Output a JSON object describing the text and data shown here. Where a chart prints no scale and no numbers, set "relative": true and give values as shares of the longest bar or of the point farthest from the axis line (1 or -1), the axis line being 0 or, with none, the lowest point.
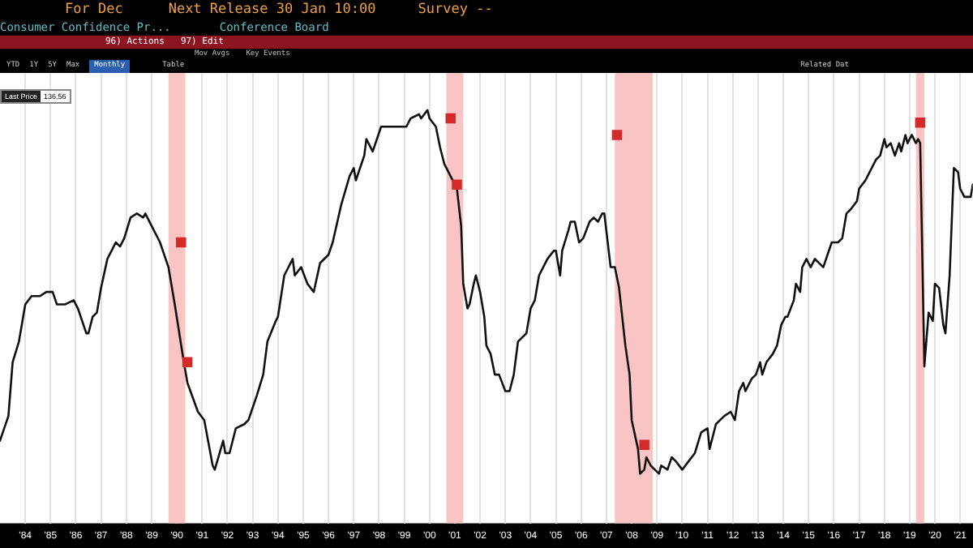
{
  "chart_data": {
    "type": "line",
    "title": "Consumer Confidence Pr...",
    "relative": true,
    "grid": "x",
    "legend": false,
    "marker": "none",
    "line_style": "solid",
    "annotations": [
      "For Dec",
      "Next Release 30 Jan 10:00",
      "Survey --",
      "Conference Board",
      "96) Actions",
      "97) Edit",
      "Mov Avgs",
      "Key Events",
      "YTD",
      "1Y",
      "5Y",
      "Max",
      "Monthly",
      "Table",
      "Related Dat",
      "Last Price",
      "136.56"
    ],
    "xlim": [
      "1983-07",
      "2022-01"
    ],
    "xticks": [
      {
        "value": "1984-07",
        "label": "'84"
      },
      {
        "value": "1985-07",
        "label": "'85"
      },
      {
        "value": "1986-07",
        "label": "'86"
      },
      {
        "value": "1987-07",
        "label": "'87"
      },
      {
        "value": "1988-07",
        "label": "'88"
      },
      {
        "value": "1989-07",
        "label": "'89"
      },
      {
        "value": "1990-07",
        "label": "'90"
      },
      {
        "value": "1991-07",
        "label": "'91"
      },
      {
        "value": "1992-07",
        "label": "'92"
      },
      {
        "value": "1993-07",
        "label": "'93"
      },
      {
        "value": "1994-07",
        "label": "'94"
      },
      {
        "value": "1995-07",
        "label": "'95"
      },
      {
        "value": "1996-07",
        "label": "'96"
      },
      {
        "value": "1997-07",
        "label": "'97"
      },
      {
        "value": "1998-07",
        "label": "'98"
      },
      {
        "value": "1999-07",
        "label": "'99"
      },
      {
        "value": "2000-07",
        "label": "'00"
      },
      {
        "value": "2001-07",
        "label": "'01"
      },
      {
        "value": "2002-07",
        "label": "'02"
      },
      {
        "value": "2003-07",
        "label": "'03"
      },
      {
        "value": "2004-07",
        "label": "'04"
      },
      {
        "value": "2005-07",
        "label": "'05"
      },
      {
        "value": "2006-07",
        "label": "'06"
      },
      {
        "value": "2007-07",
        "label": "'07"
      },
      {
        "value": "2008-07",
        "label": "'08"
      },
      {
        "value": "2009-07",
        "label": "'09"
      },
      {
        "value": "2010-07",
        "label": "'10"
      },
      {
        "value": "2011-07",
        "label": "'11"
      },
      {
        "value": "2012-07",
        "label": "'12"
      },
      {
        "value": "2013-07",
        "label": "'13"
      },
      {
        "value": "2014-07",
        "label": "'14"
      },
      {
        "value": "2015-07",
        "label": "'15"
      },
      {
        "value": "2016-07",
        "label": "'16"
      },
      {
        "value": "2017-07",
        "label": "'17"
      },
      {
        "value": "2018-07",
        "label": "'18"
      },
      {
        "value": "2019-07",
        "label": "'19"
      },
      {
        "value": "2020-07",
        "label": "'20"
      },
      {
        "value": "2021-07",
        "label": "'21"
      }
    ],
    "bands": [
      {
        "axis": "x",
        "from": "1990-03",
        "to": "1990-11",
        "color": "#f8c4c4"
      },
      {
        "axis": "x",
        "from": "2001-03",
        "to": "2001-11",
        "color": "#f8c4c4"
      },
      {
        "axis": "x",
        "from": "2007-11",
        "to": "2009-05",
        "color": "#f8c4c4"
      },
      {
        "axis": "x",
        "from": "2019-10",
        "to": "2020-02",
        "color": "#f8c4c4"
      }
    ],
    "series": [
      {
        "type": "scatter",
        "color": "#d42a2a",
        "marker": "square",
        "x": [
          "1990-09",
          "1990-12",
          "2001-05",
          "2001-08",
          "2007-12",
          "2009-01",
          "2019-12"
        ],
        "values": [
          0.68,
          0.39,
          0.98,
          0.82,
          0.94,
          0.19,
          0.97
        ]
      },
      {
        "color": "#111111",
        "x": [
          "1983-07",
          "1983-11",
          "1984-01",
          "1984-04",
          "1984-07",
          "1984-10",
          "1985-02",
          "1985-05",
          "1985-08",
          "1985-10",
          "1986-02",
          "1986-06",
          "1986-08",
          "1986-12",
          "1987-01",
          "1987-03",
          "1987-05",
          "1987-07",
          "1987-10",
          "1988-01",
          "1988-02",
          "1988-04",
          "1988-06",
          "1988-09",
          "1988-12",
          "1989-03",
          "1989-04",
          "1989-07",
          "1989-11",
          "1990-03",
          "1990-06",
          "1990-10",
          "1990-12",
          "1991-05",
          "1991-08",
          "1991-12",
          "1992-01",
          "1992-05",
          "1992-06",
          "1992-08",
          "1992-11",
          "1993-03",
          "1993-05",
          "1993-09",
          "1993-12",
          "1994-02",
          "1994-06",
          "1994-07",
          "1994-10",
          "1995-02",
          "1995-03",
          "1995-06",
          "1995-09",
          "1995-12",
          "1996-03",
          "1996-07",
          "1996-09",
          "1997-01",
          "1997-05",
          "1997-07",
          "1997-08",
          "1997-12",
          "1998-01",
          "1998-04",
          "1998-08",
          "1998-12",
          "1999-02",
          "1999-04",
          "1999-08",
          "1999-10",
          "2000-02",
          "2000-03",
          "2000-06",
          "2000-07",
          "2000-10",
          "2000-12",
          "2001-02",
          "2001-04",
          "2001-07",
          "2001-08",
          "2001-10",
          "2001-11",
          "2002-01",
          "2002-02",
          "2002-04",
          "2002-05",
          "2002-07",
          "2002-09",
          "2002-10",
          "2002-12",
          "2003-02",
          "2003-04",
          "2003-07",
          "2003-09",
          "2003-11",
          "2004-01",
          "2004-05",
          "2004-07",
          "2004-09",
          "2004-11",
          "2005-03",
          "2005-06",
          "2005-07",
          "2005-09",
          "2005-10",
          "2006-01",
          "2006-02",
          "2006-04",
          "2006-06",
          "2006-08",
          "2006-11",
          "2007-01",
          "2007-03",
          "2007-05",
          "2007-06",
          "2007-09",
          "2007-11",
          "2008-01",
          "2008-04",
          "2008-06",
          "2008-07",
          "2008-10",
          "2008-11",
          "2009-01",
          "2009-02",
          "2009-04",
          "2009-06",
          "2009-08",
          "2009-09",
          "2009-12",
          "2010-02",
          "2010-04",
          "2010-07",
          "2010-10",
          "2011-01",
          "2011-04",
          "2011-07",
          "2011-08",
          "2011-11",
          "2012-01",
          "2012-03",
          "2012-06",
          "2012-08",
          "2012-10",
          "2012-12",
          "2013-01",
          "2013-04",
          "2013-06",
          "2013-08",
          "2013-09",
          "2013-11",
          "2014-02",
          "2014-04",
          "2014-06",
          "2014-08",
          "2014-09",
          "2014-12",
          "2015-01",
          "2015-03",
          "2015-04",
          "2015-06",
          "2015-08",
          "2015-10",
          "2016-02",
          "2016-04",
          "2016-06",
          "2016-08",
          "2016-09",
          "2016-11",
          "2017-01",
          "2017-03",
          "2017-06",
          "2017-07",
          "2017-10",
          "2017-11",
          "2018-01",
          "2018-03",
          "2018-05",
          "2018-07",
          "2018-08",
          "2018-10",
          "2018-12",
          "2019-02",
          "2019-03",
          "2019-05",
          "2019-06",
          "2019-08",
          "2019-10",
          "2019-11",
          "2019-12",
          "2020-02",
          "2020-04",
          "2020-06",
          "2020-07",
          "2020-09",
          "2020-11",
          "2020-12",
          "2021-02",
          "2021-04",
          "2021-06",
          "2021-07",
          "2021-09",
          "2021-12",
          "2022-01"
        ],
        "values": [
          0.2,
          0.26,
          0.39,
          0.44,
          0.53,
          0.55,
          0.55,
          0.56,
          0.56,
          0.53,
          0.53,
          0.54,
          0.52,
          0.46,
          0.46,
          0.5,
          0.51,
          0.57,
          0.64,
          0.67,
          0.68,
          0.67,
          0.69,
          0.74,
          0.75,
          0.74,
          0.75,
          0.72,
          0.68,
          0.62,
          0.53,
          0.4,
          0.34,
          0.27,
          0.25,
          0.14,
          0.13,
          0.2,
          0.17,
          0.17,
          0.23,
          0.24,
          0.25,
          0.31,
          0.36,
          0.44,
          0.49,
          0.5,
          0.6,
          0.64,
          0.6,
          0.62,
          0.58,
          0.56,
          0.63,
          0.65,
          0.68,
          0.77,
          0.84,
          0.86,
          0.83,
          0.89,
          0.93,
          0.9,
          0.96,
          0.96,
          0.96,
          0.96,
          0.96,
          0.98,
          0.99,
          0.98,
          1,
          0.98,
          0.96,
          0.91,
          0.87,
          0.85,
          0.82,
          0.81,
          0.72,
          0.58,
          0.52,
          0.53,
          0.58,
          0.6,
          0.56,
          0.5,
          0.43,
          0.41,
          0.36,
          0.36,
          0.32,
          0.32,
          0.36,
          0.44,
          0.46,
          0.52,
          0.54,
          0.6,
          0.64,
          0.66,
          0.66,
          0.6,
          0.66,
          0.71,
          0.73,
          0.73,
          0.68,
          0.69,
          0.73,
          0.74,
          0.73,
          0.75,
          0.75,
          0.62,
          0.62,
          0.57,
          0.43,
          0.36,
          0.25,
          0.18,
          0.12,
          0.13,
          0.16,
          0.14,
          0.13,
          0.12,
          0.14,
          0.13,
          0.16,
          0.15,
          0.13,
          0.15,
          0.17,
          0.22,
          0.23,
          0.18,
          0.24,
          0.25,
          0.26,
          0.27,
          0.25,
          0.32,
          0.34,
          0.32,
          0.35,
          0.36,
          0.39,
          0.36,
          0.39,
          0.41,
          0.43,
          0.48,
          0.5,
          0.5,
          0.54,
          0.58,
          0.56,
          0.62,
          0.64,
          0.62,
          0.64,
          0.62,
          0.65,
          0.68,
          0.68,
          0.68,
          0.69,
          0.75,
          0.76,
          0.78,
          0.81,
          0.83,
          0.84,
          0.86,
          0.88,
          0.89,
          0.93,
          0.91,
          0.92,
          0.89,
          0.92,
          0.9,
          0.94,
          0.92,
          0.94,
          0.92,
          0.93,
          0.92,
          0.38,
          0.51,
          0.49,
          0.58,
          0.57,
          0.48,
          0.46,
          0.6,
          0.86,
          0.85,
          0.81,
          0.79,
          0.79,
          0.82
        ]
      }
    ]
  }
}
